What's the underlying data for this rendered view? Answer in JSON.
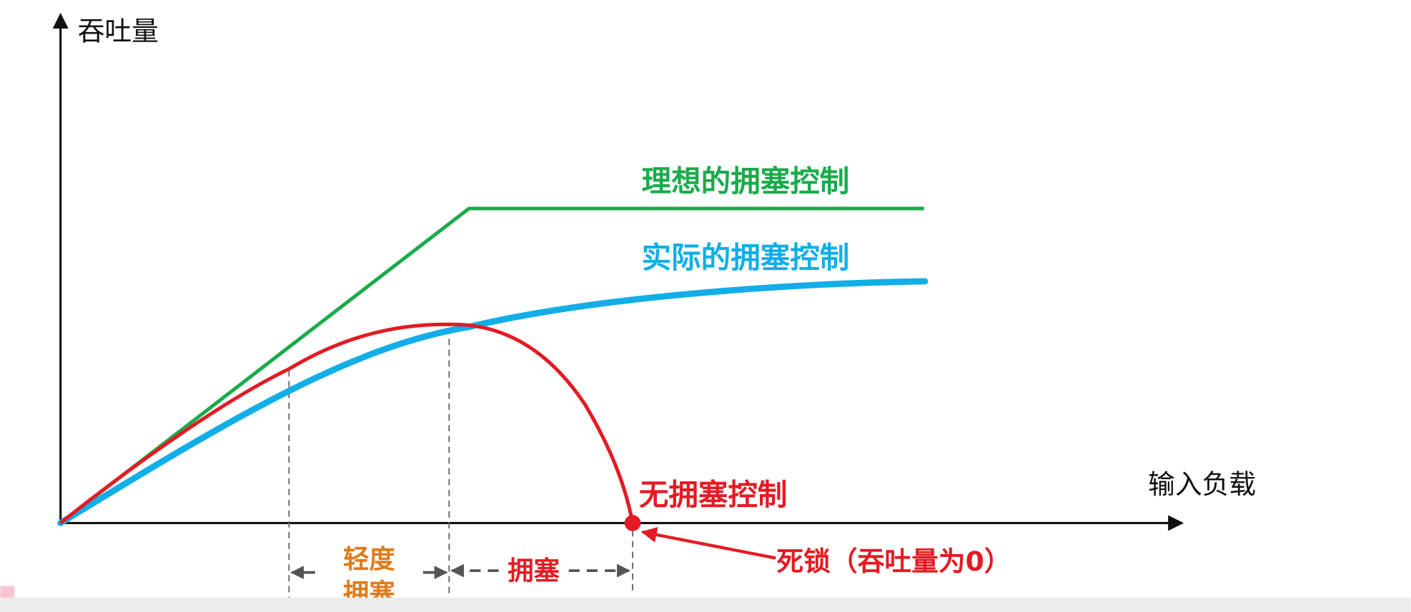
{
  "axes": {
    "y_label": "吞吐量",
    "x_label": "输入负载"
  },
  "curves": [
    {
      "label": "理想的拥塞控制"
    },
    {
      "label": "实际的拥塞控制"
    },
    {
      "label": "无拥塞控制"
    }
  ],
  "annotation": "死锁（吞吐量为0）",
  "regions": [
    {
      "label_lines": [
        "轻度",
        "拥塞"
      ]
    },
    {
      "label": "拥塞"
    }
  ]
}
